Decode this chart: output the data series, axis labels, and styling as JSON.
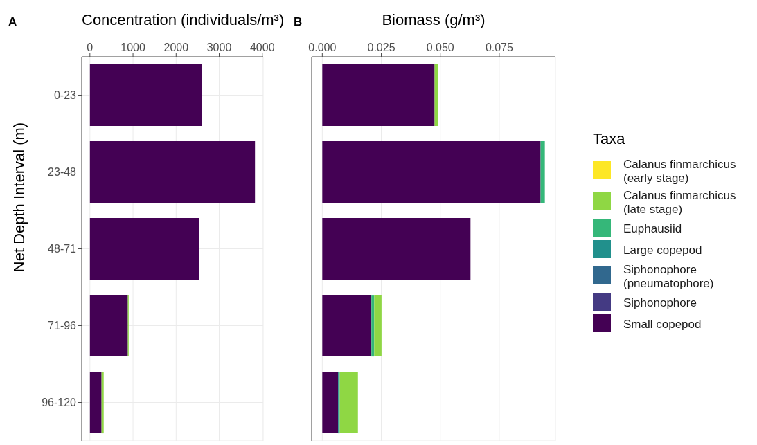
{
  "chart_data": [
    {
      "type": "bar",
      "orientation": "horizontal",
      "stacked": true,
      "title": "Concentration (individuals/m³)",
      "ylabel": "Net Depth Interval (m)",
      "annotations": [
        "A"
      ],
      "categories": [
        "0-23",
        "23-48",
        "48-71",
        "71-96",
        "96-120"
      ],
      "xlim": [
        -190,
        4020
      ],
      "xticks": [
        0,
        1000,
        2000,
        3000,
        4000
      ],
      "grid": true,
      "series": [
        {
          "color": "#440154",
          "values": [
            2590,
            3830,
            2540,
            880,
            270
          ]
        },
        {
          "color": "#8fd744",
          "values": [
            0,
            0,
            0,
            20,
            50
          ]
        },
        {
          "color": "#fde725",
          "values": [
            10,
            0,
            0,
            0,
            0
          ]
        }
      ]
    },
    {
      "type": "bar",
      "orientation": "horizontal",
      "stacked": true,
      "title": "Biomass (g/m³)",
      "annotations": [
        "B"
      ],
      "xlim": [
        -0.0045,
        0.0988
      ],
      "xticks": [
        {
          "value": 0,
          "label": "0.000"
        },
        {
          "value": 0.025,
          "label": "0.025"
        },
        {
          "value": 0.05,
          "label": "0.050"
        },
        {
          "value": 0.075,
          "label": "0.075"
        }
      ],
      "grid": true,
      "tick_labels": "x",
      "legend": "right",
      "legend_title": "Taxa",
      "series": [
        {
          "name": "Small copepod",
          "color": "#440154",
          "values": [
            0.0476,
            0.0925,
            0.0628,
            0.0208,
            0.0067
          ]
        },
        {
          "name": "Siphonophore",
          "color": "#443a83",
          "values": [
            0,
            0,
            0,
            0,
            0
          ]
        },
        {
          "name": "Siphonophore (pneumatophore)",
          "color": "#31688e",
          "values": [
            0,
            0,
            0,
            0,
            0
          ]
        },
        {
          "name": "Large copepod",
          "color": "#21908c",
          "values": [
            0,
            0,
            0,
            0,
            0.0007
          ]
        },
        {
          "name": "Euphausiid",
          "color": "#35b779",
          "values": [
            0,
            0.0018,
            0,
            0.0012,
            0
          ]
        },
        {
          "name": "Calanus finmarchicus (late stage)",
          "color": "#8fd744",
          "values": [
            0.0016,
            0,
            0,
            0.0031,
            0.0077
          ]
        },
        {
          "name": "Calanus finmarchicus (early stage)",
          "color": "#fde725",
          "values": [
            0,
            0,
            0,
            0,
            0
          ]
        }
      ]
    }
  ]
}
